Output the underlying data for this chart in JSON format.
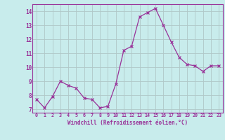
{
  "x": [
    0,
    1,
    2,
    3,
    4,
    5,
    6,
    7,
    8,
    9,
    10,
    11,
    12,
    13,
    14,
    15,
    16,
    17,
    18,
    19,
    20,
    21,
    22,
    23
  ],
  "y": [
    7.7,
    7.1,
    7.9,
    9.0,
    8.7,
    8.5,
    7.8,
    7.7,
    7.1,
    7.2,
    8.8,
    11.2,
    11.5,
    13.6,
    13.9,
    14.2,
    13.0,
    11.8,
    10.7,
    10.2,
    10.1,
    9.7,
    10.1,
    10.1
  ],
  "line_color": "#993399",
  "marker_color": "#993399",
  "bg_color": "#c8ecec",
  "grid_color": "#b0c8c8",
  "xlabel": "Windchill (Refroidissement éolien,°C)",
  "ylabel_ticks": [
    7,
    8,
    9,
    10,
    11,
    12,
    13,
    14
  ],
  "xlim": [
    -0.5,
    23.5
  ],
  "ylim": [
    6.75,
    14.5
  ],
  "label_color": "#993399",
  "tick_color": "#993399",
  "border_color": "#993399",
  "axis_bg": "#c8ecec",
  "outer_bg": "#c8ecec"
}
